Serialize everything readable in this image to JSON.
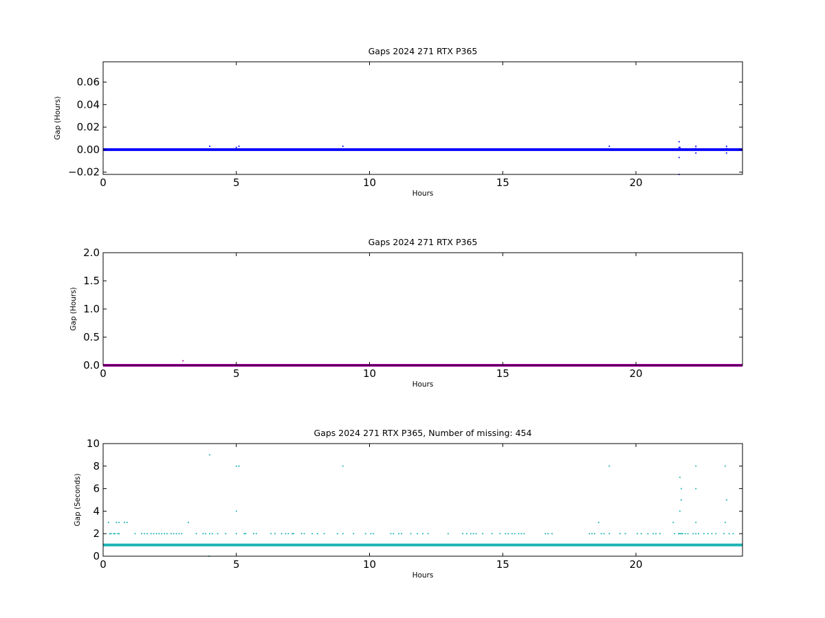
{
  "chart_data": [
    {
      "type": "scatter",
      "title": "Gaps 2024 271 RTX  P365",
      "xlabel": "Hours",
      "ylabel": "Gap (Hours)",
      "xlim": [
        0,
        24
      ],
      "ylim": [
        -0.022,
        0.078
      ],
      "xticks": [
        0,
        5,
        10,
        15,
        20
      ],
      "yticks": [
        -0.02,
        0.0,
        0.02,
        0.04,
        0.06
      ],
      "ytick_decimals": 2,
      "color": "#0000ff",
      "grid": false,
      "baseline": {
        "y": 0.0,
        "x_from": 0,
        "x_to": 24
      },
      "series": [
        {
          "x": [
            3.0,
            4.0,
            5.0,
            5.1,
            9.0,
            19.0,
            21.62,
            21.62,
            21.62,
            21.62,
            21.65,
            22.25,
            22.25,
            22.25,
            23.4,
            23.4,
            23.4
          ],
          "y": [
            0.0,
            0.003,
            0.002,
            0.003,
            0.003,
            0.003,
            0.007,
            0.002,
            -0.007,
            -0.022,
            0.002,
            0.003,
            0.001,
            -0.003,
            0.003,
            0.001,
            -0.003
          ]
        }
      ]
    },
    {
      "type": "scatter",
      "title": "Gaps 2024 271 RTX  P365",
      "xlabel": "Hours",
      "ylabel": "Gap (Hours)",
      "xlim": [
        0,
        24
      ],
      "ylim": [
        0,
        2.0
      ],
      "xticks": [
        0,
        5,
        10,
        15,
        20
      ],
      "yticks": [
        0.0,
        0.5,
        1.0,
        1.5,
        2.0
      ],
      "ytick_decimals": 1,
      "color": "#aa00aa",
      "grid": false,
      "baseline": {
        "y": 0.0,
        "x_from": 0,
        "x_to": 24
      },
      "series": [
        {
          "x": [
            3.0
          ],
          "y": [
            0.08
          ]
        }
      ]
    },
    {
      "type": "scatter",
      "title": "Gaps 2024 271 RTX  P365, Number of missing: 454",
      "xlabel": "Hours",
      "ylabel": "Gap (Seconds)",
      "xlim": [
        0,
        24
      ],
      "ylim": [
        0,
        10
      ],
      "xticks": [
        0,
        5,
        10,
        15,
        20
      ],
      "yticks": [
        0,
        2,
        4,
        6,
        8,
        10
      ],
      "ytick_decimals": 0,
      "color": "#1ab3b3",
      "grid": false,
      "baseline": {
        "y": 1.0,
        "x_from": 0,
        "x_to": 24
      },
      "series": [
        {
          "x": [
            0.2,
            0.5,
            0.6,
            0.8,
            0.9,
            3.2,
            18.6,
            21.4,
            22.25,
            23.35,
            0.25,
            0.3,
            0.4,
            0.45,
            0.55,
            0.6,
            1.2,
            1.45,
            1.55,
            1.65,
            1.8,
            1.9,
            2.0,
            2.1,
            2.2,
            2.3,
            2.4,
            2.55,
            2.65,
            2.75,
            2.85,
            2.95,
            3.5,
            3.75,
            3.85,
            4.0,
            4.1,
            4.3,
            4.6,
            5.0,
            5.3,
            5.35,
            5.65,
            5.75,
            6.3,
            6.45,
            6.7,
            6.85,
            6.95,
            7.1,
            7.15,
            7.45,
            7.55,
            7.85,
            8.05,
            8.3,
            8.8,
            9.0,
            9.4,
            9.85,
            10.05,
            10.15,
            10.8,
            10.9,
            11.1,
            11.2,
            11.55,
            11.8,
            12.0,
            12.2,
            12.95,
            13.5,
            13.65,
            13.8,
            13.9,
            14.0,
            14.25,
            14.6,
            14.9,
            15.1,
            15.2,
            15.35,
            15.45,
            15.6,
            15.7,
            15.8,
            16.6,
            16.7,
            16.85,
            18.25,
            18.35,
            18.45,
            18.7,
            18.8,
            19.0,
            19.4,
            19.6,
            20.05,
            20.2,
            20.45,
            20.65,
            20.75,
            20.9,
            21.45,
            21.6,
            21.65,
            21.7,
            21.75,
            21.85,
            21.95,
            22.15,
            22.25,
            22.35,
            22.55,
            22.7,
            22.85,
            23.0,
            23.3,
            23.5,
            23.65,
            4.0,
            5.0,
            5.1,
            9.0,
            19.0,
            22.25,
            23.35,
            5.0,
            21.65,
            21.7,
            21.7,
            21.65,
            22.25,
            23.4,
            3.98
          ],
          "y": [
            3,
            3,
            3,
            3,
            3,
            3,
            3,
            3,
            3,
            3,
            2,
            2,
            2,
            2,
            2,
            2,
            2,
            2,
            2,
            2,
            2,
            2,
            2,
            2,
            2,
            2,
            2,
            2,
            2,
            2,
            2,
            2,
            2,
            2,
            2,
            2,
            2,
            2,
            2,
            2,
            2,
            2,
            2,
            2,
            2,
            2,
            2,
            2,
            2,
            2,
            2,
            2,
            2,
            2,
            2,
            2,
            2,
            2,
            2,
            2,
            2,
            2,
            2,
            2,
            2,
            2,
            2,
            2,
            2,
            2,
            2,
            2,
            2,
            2,
            2,
            2,
            2,
            2,
            2,
            2,
            2,
            2,
            2,
            2,
            2,
            2,
            2,
            2,
            2,
            2,
            2,
            2,
            2,
            2,
            2,
            2,
            2,
            2,
            2,
            2,
            2,
            2,
            2,
            2,
            2,
            2,
            2,
            2,
            2,
            2,
            2,
            2,
            2,
            2,
            2,
            2,
            2,
            2,
            2,
            2,
            9,
            8,
            8,
            8,
            8,
            8,
            8,
            4,
            7,
            6,
            5,
            4,
            6,
            5,
            0
          ]
        }
      ]
    }
  ]
}
